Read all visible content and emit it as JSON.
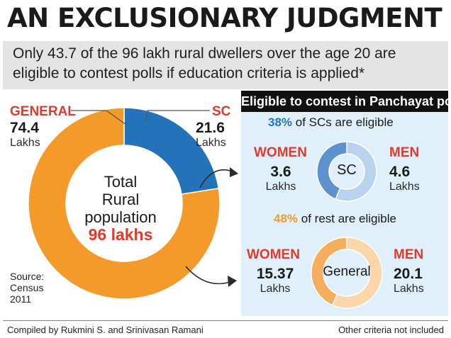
{
  "headline": "AN EXCLUSIONARY JUDGMENT",
  "subhead": {
    "line1": "Only 43.7 of the 96 lakh rural dwellers over the age 20 are",
    "line2": "eligible to contest polls if education criteria is applied*"
  },
  "colors": {
    "general": "#f39a2a",
    "sc": "#2472b8",
    "sc_women": "#5d92cc",
    "sc_men": "#b9d3ee",
    "gen_women": "#f5ae5e",
    "gen_men": "#fcd5a8",
    "highlight_red": "#e03a2f",
    "panel_bg": "#dff0fa"
  },
  "main": {
    "general_label": "GENERAL",
    "general_value": "74.4",
    "general_unit": "Lakhs",
    "sc_label": "SC",
    "sc_value": "21.6",
    "sc_unit": "Lakhs",
    "center_line1": "Total",
    "center_line2": "Rural",
    "center_line3": "population",
    "center_value": "96 lakhs",
    "source_line1": "Source:",
    "source_line2": "Census",
    "source_line3": "2011"
  },
  "panel": {
    "header": "Eligible to contest in Panchayat polls",
    "sc_pct": "38%",
    "sc_pct_text": "of SCs are eligible",
    "sc_women_label": "WOMEN",
    "sc_women_value": "3.6",
    "sc_women_unit": "Lakhs",
    "sc_center": "SC",
    "sc_men_label": "MEN",
    "sc_men_value": "4.6",
    "sc_men_unit": "Lakhs",
    "rest_pct": "48%",
    "rest_pct_text": "of rest are eligible",
    "gen_women_label": "WOMEN",
    "gen_women_value": "15.37",
    "gen_women_unit": "Lakhs",
    "gen_center": "General",
    "gen_men_label": "MEN",
    "gen_men_value": "20.1",
    "gen_men_unit": "Lakhs"
  },
  "footer": {
    "left": "Compiled by Rukmini S. and Srinivasan Ramani",
    "right": "Other criteria not included"
  },
  "chart_data": [
    {
      "type": "pie",
      "categories": [
        "GENERAL",
        "SC"
      ],
      "values": [
        74.4,
        21.6
      ],
      "units": "Lakhs",
      "total": 96
    },
    {
      "type": "pie",
      "categories": [
        "WOMEN",
        "MEN"
      ],
      "values": [
        3.6,
        4.6
      ],
      "units": "Lakhs",
      "center_label": "SC"
    },
    {
      "type": "pie",
      "categories": [
        "WOMEN",
        "MEN"
      ],
      "values": [
        15.37,
        20.1
      ],
      "units": "Lakhs",
      "center_label": "General"
    }
  ]
}
